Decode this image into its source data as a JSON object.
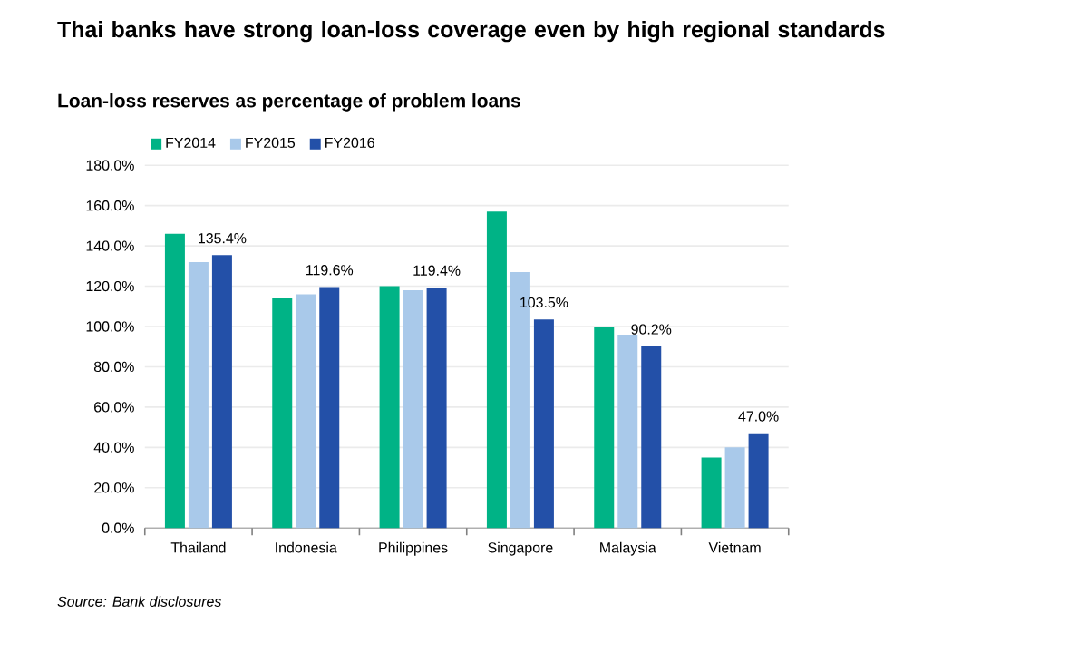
{
  "chart_data": {
    "type": "bar",
    "title": "Thai banks have strong loan-loss coverage even by high regional standards",
    "subtitle": "Loan-loss reserves as percentage of problem loans",
    "categories": [
      "Thailand",
      "Indonesia",
      "Philippines",
      "Singapore",
      "Malaysia",
      "Vietnam"
    ],
    "series": [
      {
        "name": "FY2014",
        "color": "#00b386",
        "values": [
          146,
          114,
          120,
          157,
          100,
          35
        ]
      },
      {
        "name": "FY2015",
        "color": "#a9c9ea",
        "values": [
          132,
          116,
          118,
          127,
          96,
          40
        ]
      },
      {
        "name": "FY2016",
        "color": "#2350a8",
        "values": [
          135.4,
          119.6,
          119.4,
          103.5,
          90.2,
          47.0
        ],
        "value_labels": [
          "135.4%",
          "119.6%",
          "119.4%",
          "103.5%",
          "90.2%",
          "47.0%"
        ]
      }
    ],
    "ylim": [
      0,
      180
    ],
    "yticks": [
      {
        "value": 0,
        "label": "0.0%"
      },
      {
        "value": 20,
        "label": "20.0%"
      },
      {
        "value": 40,
        "label": "40.0%"
      },
      {
        "value": 60,
        "label": "60.0%"
      },
      {
        "value": 80,
        "label": "80.0%"
      },
      {
        "value": 100,
        "label": "100.0%"
      },
      {
        "value": 120,
        "label": "120.0%"
      },
      {
        "value": 140,
        "label": "140.0%"
      },
      {
        "value": 160,
        "label": "160.0%"
      },
      {
        "value": 180,
        "label": "180.0%"
      }
    ],
    "grid": "y",
    "legend": "top left",
    "annotations": [
      "Source: Bank disclosures"
    ]
  }
}
